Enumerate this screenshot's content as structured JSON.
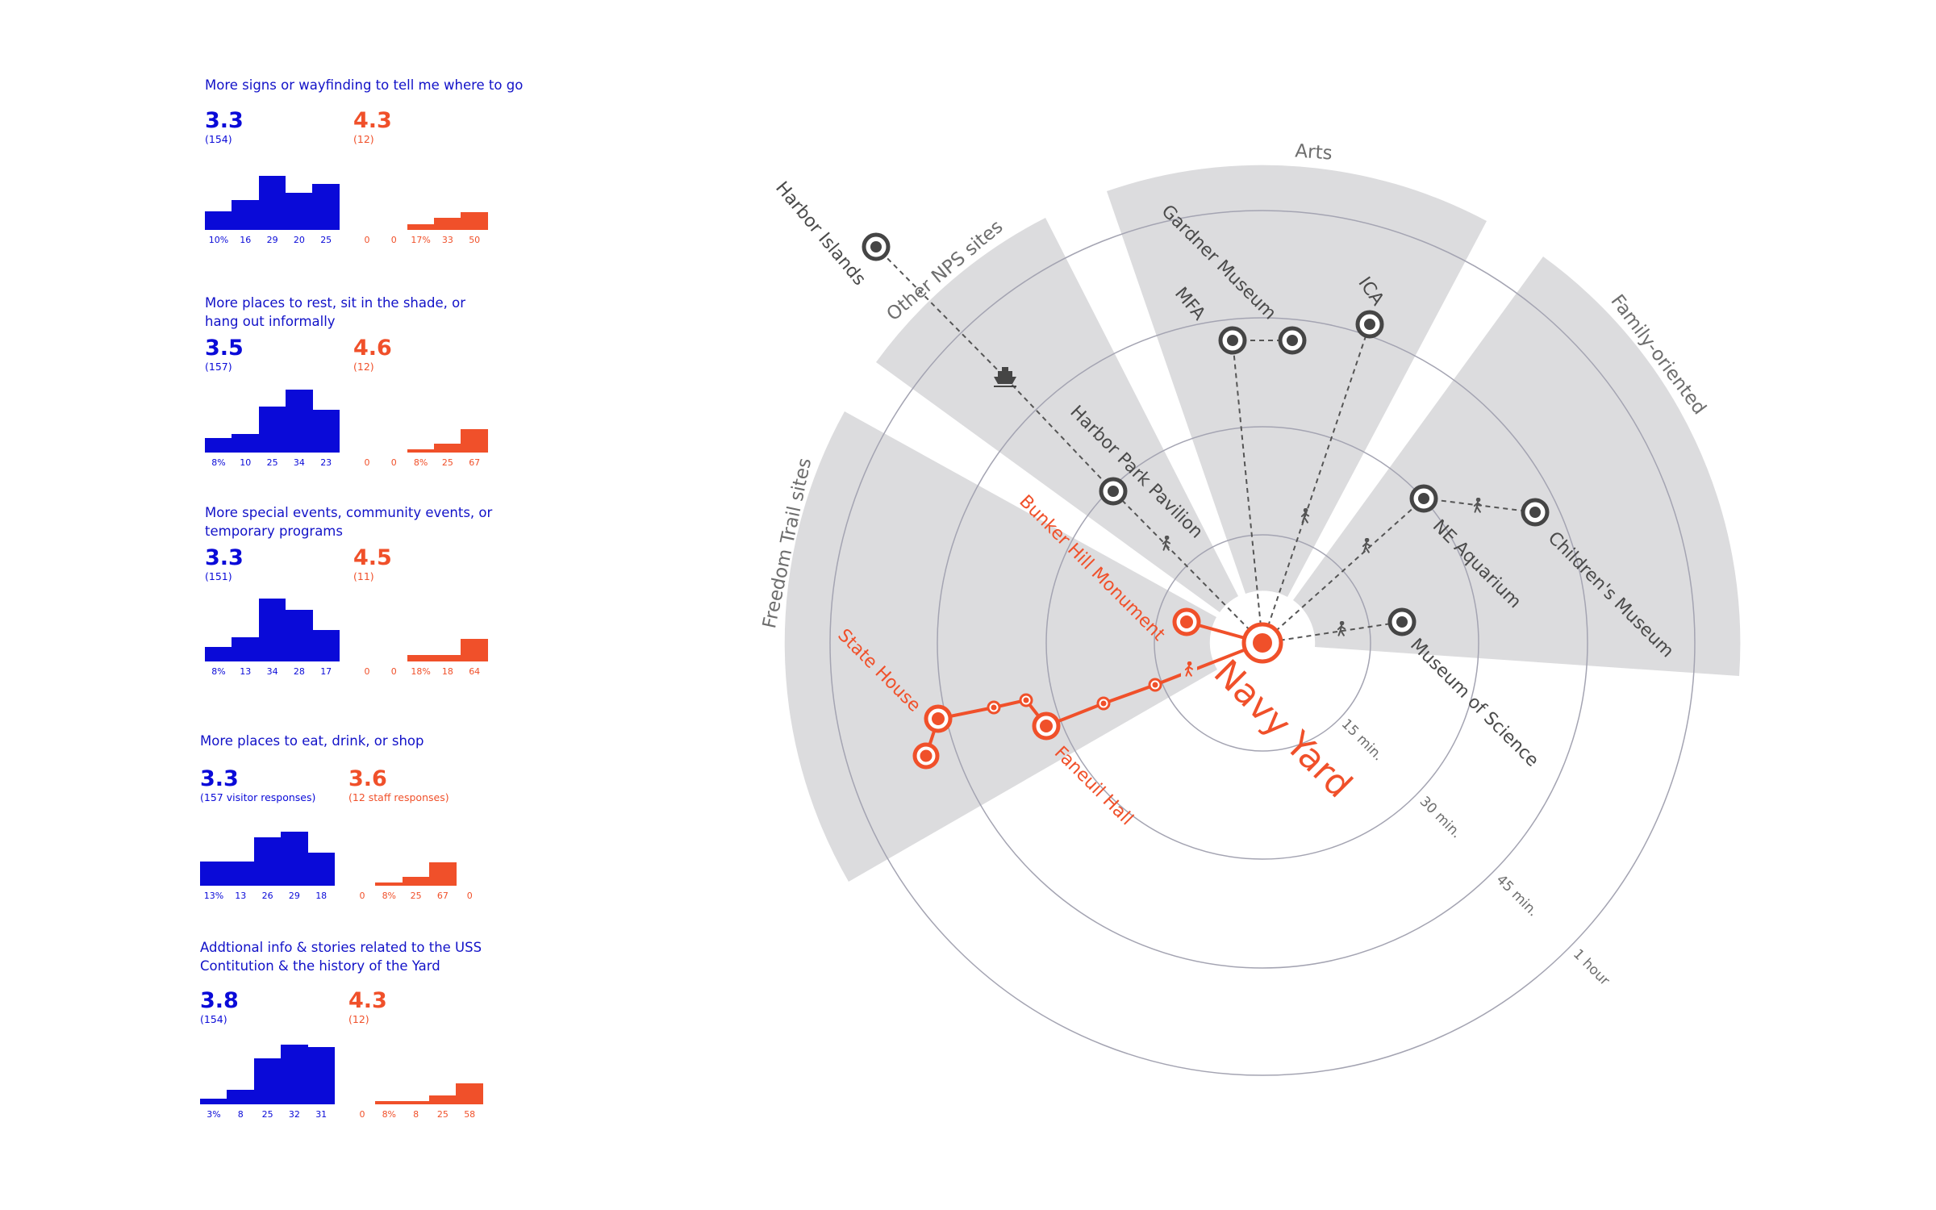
{
  "colors": {
    "visitor": "#0a0ad8",
    "staff": "#f0502a",
    "sector": "#dcdcde",
    "ring": "#a4a4b2",
    "node": "#454545"
  },
  "panels": [
    {
      "title": "More signs or wayfinding to tell me where to go",
      "visitor_score": "3.3",
      "visitor_count": "(154)",
      "staff_score": "4.3",
      "staff_count": "(12)",
      "visitor_pct": [
        10,
        16,
        29,
        20,
        25
      ],
      "visitor_labels": [
        "10%",
        "16",
        "29",
        "20",
        "25"
      ],
      "staff_pct": [
        0,
        0,
        17,
        33,
        50
      ],
      "staff_labels": [
        "0",
        "0",
        "17%",
        "33",
        "50"
      ]
    },
    {
      "title": "More places to rest, sit in the shade, or hang out informally",
      "visitor_score": "3.5",
      "visitor_count": "(157)",
      "staff_score": "4.6",
      "staff_count": "(12)",
      "visitor_pct": [
        8,
        10,
        25,
        34,
        23
      ],
      "visitor_labels": [
        "8%",
        "10",
        "25",
        "34",
        "23"
      ],
      "staff_pct": [
        0,
        0,
        8,
        25,
        67
      ],
      "staff_labels": [
        "0",
        "0",
        "8%",
        "25",
        "67"
      ]
    },
    {
      "title": "More special events, community events, or temporary programs",
      "visitor_score": "3.3",
      "visitor_count": "(151)",
      "staff_score": "4.5",
      "staff_count": "(11)",
      "visitor_pct": [
        8,
        13,
        34,
        28,
        17
      ],
      "visitor_labels": [
        "8%",
        "13",
        "34",
        "28",
        "17"
      ],
      "staff_pct": [
        0,
        0,
        18,
        18,
        64
      ],
      "staff_labels": [
        "0",
        "0",
        "18%",
        "18",
        "64"
      ]
    },
    {
      "title": "More places to eat, drink, or shop",
      "visitor_score": "3.3",
      "visitor_count": "(157 visitor responses)",
      "staff_score": "3.6",
      "staff_count": "(12 staff responses)",
      "visitor_pct": [
        13,
        13,
        26,
        29,
        18
      ],
      "visitor_labels": [
        "13%",
        "13",
        "26",
        "29",
        "18"
      ],
      "staff_pct": [
        0,
        8,
        25,
        67,
        0
      ],
      "staff_labels": [
        "0",
        "8%",
        "25",
        "67",
        "0"
      ]
    },
    {
      "title": "Addtional info & stories related to the USS Contitution & the history of the Yard",
      "visitor_score": "3.8",
      "visitor_count": "(154)",
      "staff_score": "4.3",
      "staff_count": "(12)",
      "visitor_pct": [
        3,
        8,
        25,
        32,
        31
      ],
      "visitor_labels": [
        "3%",
        "8",
        "25",
        "32",
        "31"
      ],
      "staff_pct": [
        0,
        8,
        8,
        25,
        58
      ],
      "staff_labels": [
        "0",
        "8%",
        "8",
        "25",
        "58"
      ]
    }
  ],
  "diagram": {
    "categories": {
      "freedom_trail": "Freedom Trail sites",
      "other_nps": "Other NPS sites",
      "arts": "Arts",
      "family": "Family-oriented"
    },
    "rings": [
      "15 min.",
      "30 min.",
      "45 min.",
      "1 hour"
    ],
    "origin": "Navy Yard",
    "sites": {
      "harbor_islands": "Harbor Islands",
      "harbor_park": "Harbor Park Pavilion",
      "gardner": "Gardner Museum",
      "mfa": "MFA",
      "ica": "ICA",
      "ne_aquarium": "NE Aquarium",
      "childrens": "Children's Museum",
      "science": "Museum of Science",
      "bunker_hill": "Bunker Hill Monument",
      "state_house": "State House",
      "faneuil": "Faneuil Hall"
    },
    "icons": {
      "walk": "walking-person-icon",
      "ferry": "ferry-icon",
      "site": "site-marker-icon"
    }
  }
}
